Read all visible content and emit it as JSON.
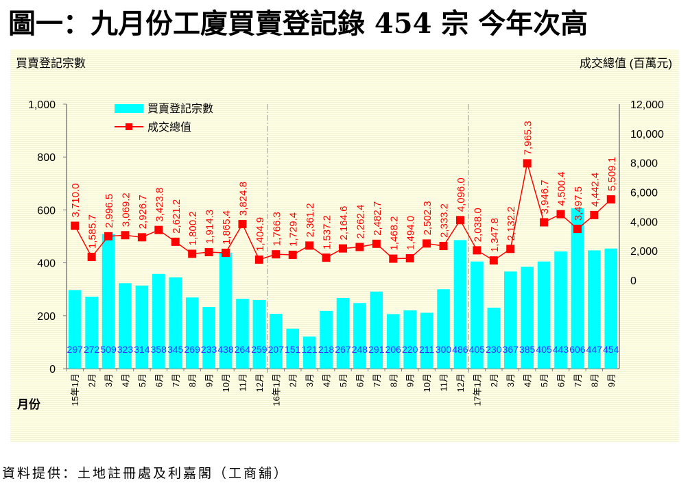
{
  "title": "圖一：九月份工廈買賣登記錄 454 宗  今年次高",
  "source": "資料提供：土地註冊處及利嘉閣（工商舖）",
  "chart_data": {
    "type": "bar+line",
    "left_axis_label": "買賣登記宗數",
    "right_axis_label": "成交總值 (百萬元)",
    "x_axis_label": "月份",
    "left_ylim": [
      0,
      1000
    ],
    "left_ticks": [
      "0",
      "200",
      "400",
      "600",
      "800",
      "1,000"
    ],
    "right_ylim_visible": [
      0,
      12000
    ],
    "right_ticks": [
      "0",
      "2,000",
      "4,000",
      "6,000",
      "8,000",
      "10,000",
      "12,000"
    ],
    "legend_placement": "top-left",
    "grid": false,
    "colors": {
      "bars": "#00ffff",
      "line": "#ff0000",
      "bar_labels": "#3333ff",
      "line_labels": "#ff0000"
    },
    "categories": [
      "15年1月",
      "2月",
      "3月",
      "4月",
      "5月",
      "6月",
      "7月",
      "8月",
      "9月",
      "10月",
      "11月",
      "12月",
      "16年1月",
      "2月",
      "3月",
      "4月",
      "5月",
      "6月",
      "7月",
      "8月",
      "9月",
      "10月",
      "11月",
      "12月",
      "17年1月",
      "2月",
      "3月",
      "4月",
      "5月",
      "6月",
      "7月",
      "8月",
      "9月"
    ],
    "series": [
      {
        "name": "買賣登記宗數",
        "type": "bar",
        "axis": "left",
        "values": [
          297,
          272,
          509,
          323,
          314,
          358,
          345,
          269,
          233,
          438,
          264,
          259,
          207,
          151,
          121,
          218,
          267,
          248,
          291,
          206,
          220,
          211,
          300,
          486,
          405,
          230,
          367,
          385,
          405,
          443,
          606,
          447,
          454
        ]
      },
      {
        "name": "成交總值",
        "type": "line",
        "axis": "right",
        "values": [
          3710.0,
          1585.7,
          2996.5,
          3069.2,
          2926.7,
          3423.8,
          2621.2,
          1800.2,
          1914.3,
          1865.4,
          3824.8,
          1404.9,
          1766.3,
          1729.4,
          2361.2,
          1537.2,
          2164.6,
          2262.4,
          2482.7,
          1468.2,
          1494.0,
          2502.3,
          2333.2,
          4096.0,
          2038.0,
          1347.8,
          2132.2,
          7965.3,
          3946.7,
          4500.4,
          3497.5,
          4442.4,
          5509.1
        ]
      }
    ]
  }
}
